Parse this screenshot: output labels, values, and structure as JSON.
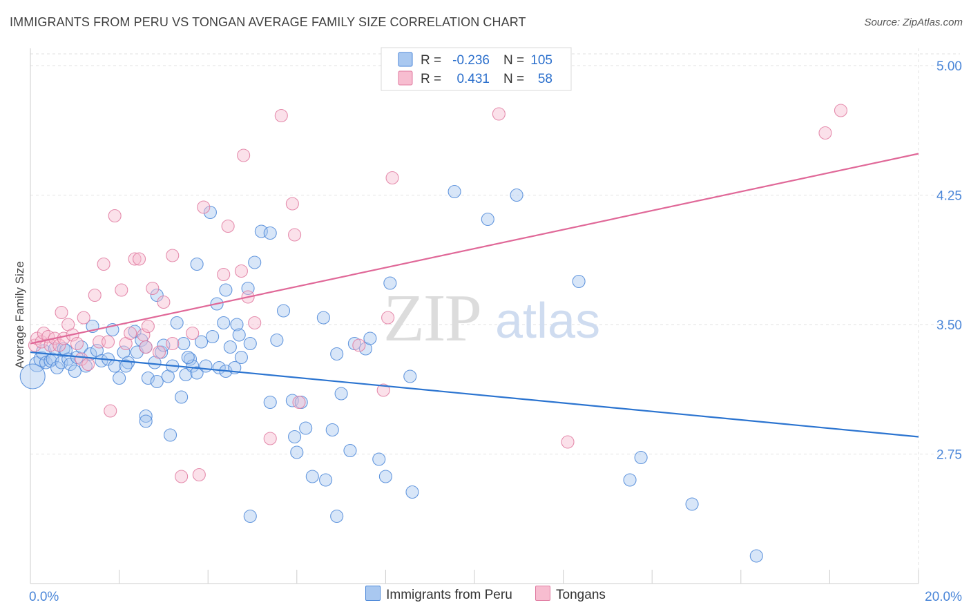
{
  "title": "IMMIGRANTS FROM PERU VS TONGAN AVERAGE FAMILY SIZE CORRELATION CHART",
  "source": "Source: ZipAtlas.com",
  "watermark": {
    "zip": "ZIP",
    "atlas": "atlas"
  },
  "legend": {
    "r_label": "R =",
    "n_label": "N =",
    "entries": [
      {
        "r": "-0.236",
        "n": "105",
        "fill": "#a9c8f0",
        "stroke": "#4a86d8"
      },
      {
        "r": "0.431",
        "n": "58",
        "fill": "#f7bdd0",
        "stroke": "#e07aa0"
      }
    ]
  },
  "bottom_legend": [
    {
      "label": "Immigrants from Peru",
      "fill": "#a9c8f0",
      "stroke": "#4a86d8"
    },
    {
      "label": "Tongans",
      "fill": "#f7bdd0",
      "stroke": "#e07aa0"
    }
  ],
  "colors": {
    "blue_line": "#2b74d0",
    "pink_line": "#e06898",
    "tick_text": "#4a86d8",
    "grid": "#e2e2e2"
  },
  "chart_data": {
    "type": "scatter",
    "title": "IMMIGRANTS FROM PERU VS TONGAN AVERAGE FAMILY SIZE CORRELATION CHART",
    "xlabel": "",
    "ylabel": "Average Family Size",
    "xlim": [
      0,
      20
    ],
    "ylim": [
      2.0,
      5.1
    ],
    "x_tick_labels": [
      {
        "value": 0,
        "label": "0.0%"
      },
      {
        "value": 20,
        "label": "20.0%"
      }
    ],
    "y_ticks": [
      {
        "value": 2.75,
        "label": "2.75"
      },
      {
        "value": 3.5,
        "label": "3.50"
      },
      {
        "value": 4.25,
        "label": "4.25"
      },
      {
        "value": 5.0,
        "label": "5.00"
      }
    ],
    "grid": true,
    "legend_position": "top-center",
    "series": [
      {
        "name": "Immigrants from Peru",
        "r": -0.236,
        "n": 105,
        "trend": {
          "x": [
            0,
            20
          ],
          "y": [
            3.34,
            2.85
          ]
        },
        "points": [
          [
            0.15,
            3.27
          ],
          [
            0.25,
            3.3
          ],
          [
            0.3,
            3.34
          ],
          [
            0.35,
            3.28
          ],
          [
            0.45,
            3.29
          ],
          [
            0.5,
            3.3
          ],
          [
            0.55,
            3.36
          ],
          [
            0.6,
            3.25
          ],
          [
            0.7,
            3.28
          ],
          [
            0.75,
            3.36
          ],
          [
            0.8,
            3.35
          ],
          [
            0.85,
            3.3
          ],
          [
            0.9,
            3.27
          ],
          [
            1.0,
            3.23
          ],
          [
            1.05,
            3.31
          ],
          [
            1.15,
            3.37
          ],
          [
            1.35,
            3.33
          ],
          [
            1.4,
            3.49
          ],
          [
            1.5,
            3.35
          ],
          [
            1.6,
            3.29
          ],
          [
            1.75,
            3.3
          ],
          [
            1.85,
            3.47
          ],
          [
            1.9,
            3.26
          ],
          [
            2.0,
            3.19
          ],
          [
            2.1,
            3.34
          ],
          [
            2.2,
            3.28
          ],
          [
            2.35,
            3.46
          ],
          [
            2.4,
            3.34
          ],
          [
            2.5,
            3.41
          ],
          [
            2.6,
            3.37
          ],
          [
            2.6,
            2.97
          ],
          [
            2.6,
            2.94
          ],
          [
            2.65,
            3.19
          ],
          [
            2.8,
            3.28
          ],
          [
            2.85,
            3.67
          ],
          [
            2.85,
            3.17
          ],
          [
            2.95,
            3.34
          ],
          [
            3.0,
            3.38
          ],
          [
            3.1,
            3.2
          ],
          [
            3.15,
            2.86
          ],
          [
            3.2,
            3.26
          ],
          [
            3.3,
            3.51
          ],
          [
            3.4,
            3.08
          ],
          [
            3.45,
            3.39
          ],
          [
            3.5,
            3.21
          ],
          [
            3.6,
            3.3
          ],
          [
            3.65,
            3.26
          ],
          [
            3.75,
            3.22
          ],
          [
            3.75,
            3.85
          ],
          [
            3.85,
            3.4
          ],
          [
            3.95,
            3.26
          ],
          [
            4.05,
            4.15
          ],
          [
            4.1,
            3.43
          ],
          [
            4.2,
            3.62
          ],
          [
            4.25,
            3.25
          ],
          [
            4.35,
            3.51
          ],
          [
            4.4,
            3.23
          ],
          [
            4.4,
            3.7
          ],
          [
            4.5,
            3.37
          ],
          [
            4.65,
            3.5
          ],
          [
            4.7,
            3.44
          ],
          [
            4.75,
            3.31
          ],
          [
            4.9,
            3.71
          ],
          [
            4.95,
            3.39
          ],
          [
            4.95,
            2.39
          ],
          [
            5.05,
            3.86
          ],
          [
            5.2,
            4.04
          ],
          [
            5.4,
            4.03
          ],
          [
            5.4,
            3.05
          ],
          [
            5.55,
            3.41
          ],
          [
            5.7,
            3.58
          ],
          [
            5.9,
            3.06
          ],
          [
            5.95,
            2.85
          ],
          [
            6.0,
            2.76
          ],
          [
            6.2,
            2.9
          ],
          [
            6.35,
            2.62
          ],
          [
            6.6,
            3.54
          ],
          [
            6.65,
            2.6
          ],
          [
            6.8,
            2.89
          ],
          [
            6.9,
            2.39
          ],
          [
            6.9,
            3.33
          ],
          [
            7.0,
            3.1
          ],
          [
            7.2,
            2.77
          ],
          [
            7.55,
            3.36
          ],
          [
            7.65,
            3.42
          ],
          [
            7.85,
            2.72
          ],
          [
            8.0,
            2.62
          ],
          [
            8.1,
            3.74
          ],
          [
            8.55,
            3.2
          ],
          [
            8.6,
            2.53
          ],
          [
            9.55,
            4.27
          ],
          [
            10.3,
            4.11
          ],
          [
            10.95,
            4.25
          ],
          [
            12.35,
            3.75
          ],
          [
            13.5,
            2.6
          ],
          [
            13.75,
            2.73
          ],
          [
            14.9,
            2.46
          ],
          [
            16.35,
            2.16
          ],
          [
            0.05,
            3.2
          ],
          [
            1.25,
            3.26
          ],
          [
            2.15,
            3.26
          ],
          [
            3.55,
            3.31
          ],
          [
            4.6,
            3.25
          ],
          [
            6.1,
            3.05
          ],
          [
            7.3,
            3.39
          ]
        ]
      },
      {
        "name": "Tongans",
        "r": 0.431,
        "n": 58,
        "trend": {
          "x": [
            0,
            20
          ],
          "y": [
            3.39,
            4.49
          ]
        },
        "points": [
          [
            0.1,
            3.38
          ],
          [
            0.15,
            3.42
          ],
          [
            0.25,
            3.4
          ],
          [
            0.3,
            3.45
          ],
          [
            0.4,
            3.43
          ],
          [
            0.45,
            3.38
          ],
          [
            0.55,
            3.42
          ],
          [
            0.65,
            3.38
          ],
          [
            0.7,
            3.57
          ],
          [
            0.75,
            3.42
          ],
          [
            0.85,
            3.5
          ],
          [
            0.95,
            3.44
          ],
          [
            1.05,
            3.39
          ],
          [
            1.15,
            3.3
          ],
          [
            1.2,
            3.54
          ],
          [
            1.3,
            3.27
          ],
          [
            1.45,
            3.67
          ],
          [
            1.55,
            3.4
          ],
          [
            1.65,
            3.85
          ],
          [
            1.75,
            3.4
          ],
          [
            1.8,
            3.0
          ],
          [
            1.9,
            4.13
          ],
          [
            2.05,
            3.7
          ],
          [
            2.15,
            3.39
          ],
          [
            2.25,
            3.45
          ],
          [
            2.35,
            3.88
          ],
          [
            2.45,
            3.88
          ],
          [
            2.55,
            3.44
          ],
          [
            2.6,
            3.37
          ],
          [
            2.65,
            3.49
          ],
          [
            2.75,
            3.71
          ],
          [
            2.9,
            3.34
          ],
          [
            3.0,
            3.63
          ],
          [
            3.2,
            3.39
          ],
          [
            3.2,
            3.9
          ],
          [
            3.4,
            2.62
          ],
          [
            3.65,
            3.45
          ],
          [
            3.8,
            2.63
          ],
          [
            3.9,
            4.18
          ],
          [
            4.35,
            3.79
          ],
          [
            4.45,
            4.07
          ],
          [
            4.75,
            3.81
          ],
          [
            4.8,
            4.48
          ],
          [
            4.9,
            3.66
          ],
          [
            5.05,
            3.51
          ],
          [
            5.4,
            2.84
          ],
          [
            5.65,
            4.71
          ],
          [
            5.9,
            4.2
          ],
          [
            5.95,
            4.02
          ],
          [
            6.05,
            3.05
          ],
          [
            7.4,
            3.38
          ],
          [
            7.95,
            3.12
          ],
          [
            8.05,
            3.54
          ],
          [
            8.15,
            4.35
          ],
          [
            10.55,
            4.72
          ],
          [
            12.1,
            2.82
          ],
          [
            17.9,
            4.61
          ],
          [
            18.25,
            4.74
          ]
        ]
      }
    ]
  }
}
